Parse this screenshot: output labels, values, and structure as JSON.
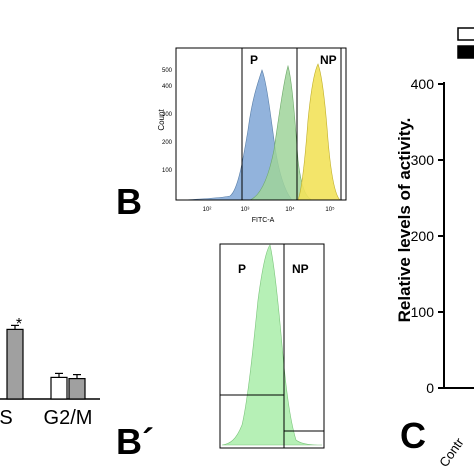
{
  "panel_labels": {
    "B": "B",
    "B_prime": "B´",
    "C": "C"
  },
  "chart_data": [
    {
      "id": "cell-cycle-bars",
      "type": "bar",
      "categories": [
        "S",
        "G2/M"
      ],
      "series": [
        {
          "fill": "#ffffff",
          "values": [
            null,
            18
          ]
        },
        {
          "fill": "#a0a0a0",
          "values": [
            58,
            17
          ]
        }
      ],
      "annotations": [
        {
          "category": "S",
          "text": "*"
        }
      ]
    },
    {
      "id": "flow-histogram-B",
      "type": "area",
      "xlabel": "FITC-A",
      "ylabel": "Count",
      "xscale": "log",
      "xlim": [
        10,
        500000
      ],
      "ylim": [
        0,
        500
      ],
      "xticks": [
        "10²",
        "10³",
        "10⁴",
        "10⁵"
      ],
      "yticks": [
        "100",
        "200",
        "300",
        "400",
        "500"
      ],
      "gates": [
        {
          "label": "P"
        },
        {
          "label": "NP"
        }
      ],
      "populations": [
        {
          "color": "#7fa6d6",
          "peak_x": 1700,
          "peak_count": 480
        },
        {
          "color": "#9fd49a",
          "peak_x": 8000,
          "peak_count": 460
        },
        {
          "color": "#f2e25a",
          "peak_x": 40000,
          "peak_count": 440
        }
      ]
    },
    {
      "id": "flow-histogram-B-prime",
      "type": "area",
      "gates": [
        {
          "label": "P"
        },
        {
          "label": "NP"
        }
      ],
      "populations": [
        {
          "color": "#b6f0b6"
        }
      ]
    },
    {
      "id": "activity-levels-C",
      "type": "bar",
      "ylabel": "Relative levels of activity.",
      "ylim": [
        0,
        400
      ],
      "yticks": [
        "0",
        "100",
        "200",
        "300",
        "400"
      ],
      "categories": [
        "Contr"
      ]
    }
  ]
}
